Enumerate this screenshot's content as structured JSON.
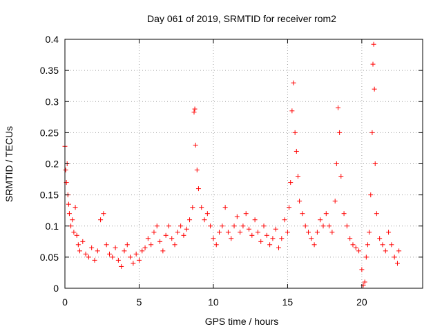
{
  "chart_data": {
    "type": "scatter",
    "title": "Day 061 of 2019, SRMTID for receiver rom2",
    "xlabel": "GPS time / hours",
    "ylabel": "SRMTID / TECUs",
    "xlim": [
      0,
      24.1
    ],
    "ylim": [
      0,
      0.4
    ],
    "xticks": [
      0,
      5,
      10,
      15,
      20
    ],
    "xtick_labels": [
      "0",
      "5",
      "10",
      "15",
      "20"
    ],
    "yticks": [
      0,
      0.05,
      0.1,
      0.15,
      0.2,
      0.25,
      0.3,
      0.35,
      0.4
    ],
    "ytick_labels": [
      "0",
      "0.05",
      "0.1",
      "0.15",
      "0.2",
      "0.25",
      "0.3",
      "0.35",
      "0.4"
    ],
    "grid": true,
    "marker": "+",
    "point_color": "#ff0000",
    "series": [
      {
        "name": "SRMTID",
        "points": [
          [
            0.0,
            0.228
          ],
          [
            0.05,
            0.19
          ],
          [
            0.1,
            0.17
          ],
          [
            0.15,
            0.2
          ],
          [
            0.2,
            0.15
          ],
          [
            0.25,
            0.135
          ],
          [
            0.3,
            0.12
          ],
          [
            0.4,
            0.1
          ],
          [
            0.5,
            0.11
          ],
          [
            0.6,
            0.09
          ],
          [
            0.7,
            0.13
          ],
          [
            0.8,
            0.085
          ],
          [
            0.9,
            0.07
          ],
          [
            1.0,
            0.06
          ],
          [
            1.2,
            0.075
          ],
          [
            1.4,
            0.055
          ],
          [
            1.6,
            0.05
          ],
          [
            1.8,
            0.065
          ],
          [
            2.0,
            0.045
          ],
          [
            2.2,
            0.06
          ],
          [
            2.4,
            0.11
          ],
          [
            2.6,
            0.12
          ],
          [
            2.8,
            0.07
          ],
          [
            3.0,
            0.055
          ],
          [
            3.2,
            0.05
          ],
          [
            3.4,
            0.065
          ],
          [
            3.6,
            0.045
          ],
          [
            3.8,
            0.035
          ],
          [
            4.0,
            0.06
          ],
          [
            4.2,
            0.07
          ],
          [
            4.4,
            0.05
          ],
          [
            4.6,
            0.04
          ],
          [
            4.8,
            0.055
          ],
          [
            5.0,
            0.045
          ],
          [
            5.2,
            0.06
          ],
          [
            5.4,
            0.065
          ],
          [
            5.6,
            0.08
          ],
          [
            5.8,
            0.07
          ],
          [
            6.0,
            0.09
          ],
          [
            6.2,
            0.1
          ],
          [
            6.4,
            0.075
          ],
          [
            6.6,
            0.06
          ],
          [
            6.8,
            0.085
          ],
          [
            7.0,
            0.1
          ],
          [
            7.2,
            0.08
          ],
          [
            7.4,
            0.07
          ],
          [
            7.6,
            0.09
          ],
          [
            7.8,
            0.1
          ],
          [
            8.0,
            0.085
          ],
          [
            8.2,
            0.095
          ],
          [
            8.4,
            0.11
          ],
          [
            8.6,
            0.13
          ],
          [
            8.7,
            0.283
          ],
          [
            8.75,
            0.288
          ],
          [
            8.8,
            0.23
          ],
          [
            8.9,
            0.19
          ],
          [
            9.0,
            0.16
          ],
          [
            9.2,
            0.13
          ],
          [
            9.4,
            0.11
          ],
          [
            9.6,
            0.12
          ],
          [
            9.8,
            0.1
          ],
          [
            10.0,
            0.08
          ],
          [
            10.2,
            0.07
          ],
          [
            10.4,
            0.09
          ],
          [
            10.6,
            0.1
          ],
          [
            10.8,
            0.13
          ],
          [
            11.0,
            0.09
          ],
          [
            11.2,
            0.08
          ],
          [
            11.4,
            0.1
          ],
          [
            11.6,
            0.115
          ],
          [
            11.8,
            0.09
          ],
          [
            12.0,
            0.1
          ],
          [
            12.2,
            0.12
          ],
          [
            12.4,
            0.095
          ],
          [
            12.6,
            0.085
          ],
          [
            12.8,
            0.11
          ],
          [
            13.0,
            0.09
          ],
          [
            13.2,
            0.075
          ],
          [
            13.4,
            0.1
          ],
          [
            13.6,
            0.085
          ],
          [
            13.8,
            0.07
          ],
          [
            14.0,
            0.08
          ],
          [
            14.2,
            0.095
          ],
          [
            14.4,
            0.065
          ],
          [
            14.6,
            0.08
          ],
          [
            14.8,
            0.11
          ],
          [
            15.0,
            0.09
          ],
          [
            15.1,
            0.13
          ],
          [
            15.2,
            0.17
          ],
          [
            15.3,
            0.285
          ],
          [
            15.4,
            0.33
          ],
          [
            15.5,
            0.25
          ],
          [
            15.6,
            0.22
          ],
          [
            15.7,
            0.18
          ],
          [
            15.8,
            0.14
          ],
          [
            16.0,
            0.12
          ],
          [
            16.2,
            0.1
          ],
          [
            16.4,
            0.09
          ],
          [
            16.6,
            0.08
          ],
          [
            16.8,
            0.07
          ],
          [
            17.0,
            0.09
          ],
          [
            17.2,
            0.11
          ],
          [
            17.4,
            0.1
          ],
          [
            17.6,
            0.12
          ],
          [
            17.8,
            0.1
          ],
          [
            18.0,
            0.09
          ],
          [
            18.2,
            0.14
          ],
          [
            18.3,
            0.2
          ],
          [
            18.4,
            0.29
          ],
          [
            18.5,
            0.25
          ],
          [
            18.6,
            0.18
          ],
          [
            18.8,
            0.12
          ],
          [
            19.0,
            0.1
          ],
          [
            19.2,
            0.08
          ],
          [
            19.4,
            0.07
          ],
          [
            19.6,
            0.065
          ],
          [
            19.8,
            0.06
          ],
          [
            20.0,
            0.03
          ],
          [
            20.1,
            0.005
          ],
          [
            20.2,
            0.01
          ],
          [
            20.3,
            0.05
          ],
          [
            20.4,
            0.07
          ],
          [
            20.5,
            0.09
          ],
          [
            20.6,
            0.15
          ],
          [
            20.7,
            0.25
          ],
          [
            20.75,
            0.36
          ],
          [
            20.8,
            0.392
          ],
          [
            20.85,
            0.32
          ],
          [
            20.9,
            0.2
          ],
          [
            21.0,
            0.12
          ],
          [
            21.2,
            0.08
          ],
          [
            21.4,
            0.07
          ],
          [
            21.6,
            0.06
          ],
          [
            21.8,
            0.09
          ],
          [
            22.0,
            0.07
          ],
          [
            22.2,
            0.05
          ],
          [
            22.4,
            0.04
          ],
          [
            22.5,
            0.06
          ]
        ]
      }
    ]
  }
}
